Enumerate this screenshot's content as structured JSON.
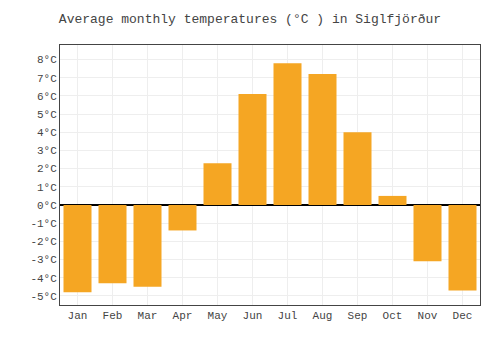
{
  "chart_data": {
    "type": "bar",
    "title": "Average monthly temperatures (°C ) in Siglfjörður",
    "categories": [
      "Jan",
      "Feb",
      "Mar",
      "Apr",
      "May",
      "Jun",
      "Jul",
      "Aug",
      "Sep",
      "Oct",
      "Nov",
      "Dec"
    ],
    "values": [
      -4.8,
      -4.3,
      -4.5,
      -1.4,
      2.3,
      6.1,
      7.8,
      7.2,
      4.0,
      0.5,
      -3.1,
      -4.7
    ],
    "color": "#F5A623",
    "ylim": [
      -5.5,
      8.8
    ],
    "yticks": [
      {
        "value": -5,
        "label": "-5°C"
      },
      {
        "value": -4,
        "label": "-4°C"
      },
      {
        "value": -3,
        "label": "-3°C"
      },
      {
        "value": -2,
        "label": "-2°C"
      },
      {
        "value": -1,
        "label": "-1°C"
      },
      {
        "value": 0,
        "label": "0°C"
      },
      {
        "value": 1,
        "label": "1°C"
      },
      {
        "value": 2,
        "label": "2°C"
      },
      {
        "value": 3,
        "label": "3°C"
      },
      {
        "value": 4,
        "label": "4°C"
      },
      {
        "value": 5,
        "label": "5°C"
      },
      {
        "value": 6,
        "label": "6°C"
      },
      {
        "value": 7,
        "label": "7°C"
      },
      {
        "value": 8,
        "label": "8°C"
      }
    ],
    "grid": true
  }
}
